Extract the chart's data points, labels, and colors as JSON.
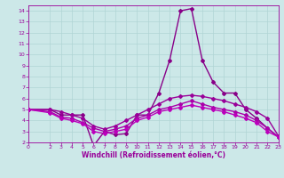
{
  "xlabel": "Windchill (Refroidissement éolien,°C)",
  "ylabel": "",
  "background_color": "#cce8e8",
  "line_color": "#990099",
  "grid_color": "#aacccc",
  "xlim": [
    0,
    23
  ],
  "ylim": [
    2,
    14.5
  ],
  "yticks": [
    2,
    3,
    4,
    5,
    6,
    7,
    8,
    9,
    10,
    11,
    12,
    13,
    14
  ],
  "xticks": [
    0,
    2,
    3,
    4,
    5,
    6,
    7,
    8,
    9,
    10,
    11,
    12,
    13,
    14,
    15,
    16,
    17,
    18,
    19,
    20,
    21,
    22,
    23
  ],
  "series": [
    {
      "x": [
        0,
        2,
        3,
        4,
        5,
        6,
        7,
        8,
        9,
        10,
        11,
        12,
        13,
        14,
        15,
        16,
        17,
        18,
        19,
        20,
        21,
        22,
        23
      ],
      "y": [
        5.0,
        5.0,
        4.5,
        4.5,
        4.5,
        1.7,
        3.0,
        2.7,
        2.8,
        4.5,
        4.5,
        6.5,
        9.5,
        14.0,
        14.2,
        9.5,
        7.5,
        6.5,
        6.5,
        5.0,
        4.2,
        3.3,
        2.5
      ],
      "color": "#880088",
      "linewidth": 1.0,
      "marker": "D",
      "markersize": 2.0
    },
    {
      "x": [
        0,
        2,
        3,
        4,
        5,
        6,
        7,
        8,
        9,
        10,
        11,
        12,
        13,
        14,
        15,
        16,
        17,
        18,
        19,
        20,
        21,
        22,
        23
      ],
      "y": [
        5.0,
        5.0,
        4.8,
        4.5,
        4.2,
        3.5,
        3.2,
        3.5,
        4.0,
        4.5,
        5.0,
        5.5,
        6.0,
        6.2,
        6.3,
        6.2,
        6.0,
        5.8,
        5.5,
        5.2,
        4.8,
        4.2,
        2.6
      ],
      "color": "#990099",
      "linewidth": 1.0,
      "marker": "D",
      "markersize": 2.0
    },
    {
      "x": [
        0,
        2,
        3,
        4,
        5,
        6,
        7,
        8,
        9,
        10,
        11,
        12,
        13,
        14,
        15,
        16,
        17,
        18,
        19,
        20,
        21,
        22,
        23
      ],
      "y": [
        5.0,
        4.8,
        4.3,
        4.2,
        3.8,
        3.3,
        3.0,
        3.2,
        3.5,
        4.2,
        4.5,
        5.0,
        5.2,
        5.5,
        5.8,
        5.5,
        5.2,
        5.0,
        4.8,
        4.5,
        4.0,
        3.3,
        2.5
      ],
      "color": "#aa00aa",
      "linewidth": 1.0,
      "marker": "D",
      "markersize": 2.0
    },
    {
      "x": [
        0,
        2,
        3,
        4,
        5,
        6,
        7,
        8,
        9,
        10,
        11,
        12,
        13,
        14,
        15,
        16,
        17,
        18,
        19,
        20,
        21,
        22,
        23
      ],
      "y": [
        5.0,
        4.7,
        4.2,
        4.0,
        3.7,
        3.0,
        2.8,
        3.0,
        3.2,
        4.0,
        4.3,
        4.8,
        5.0,
        5.2,
        5.4,
        5.2,
        5.0,
        4.8,
        4.5,
        4.2,
        3.8,
        3.0,
        2.5
      ],
      "color": "#bb00bb",
      "linewidth": 1.0,
      "marker": "D",
      "markersize": 2.0
    }
  ],
  "font_color": "#990099",
  "tick_fontsize": 4.5,
  "xlabel_fontsize": 5.5
}
